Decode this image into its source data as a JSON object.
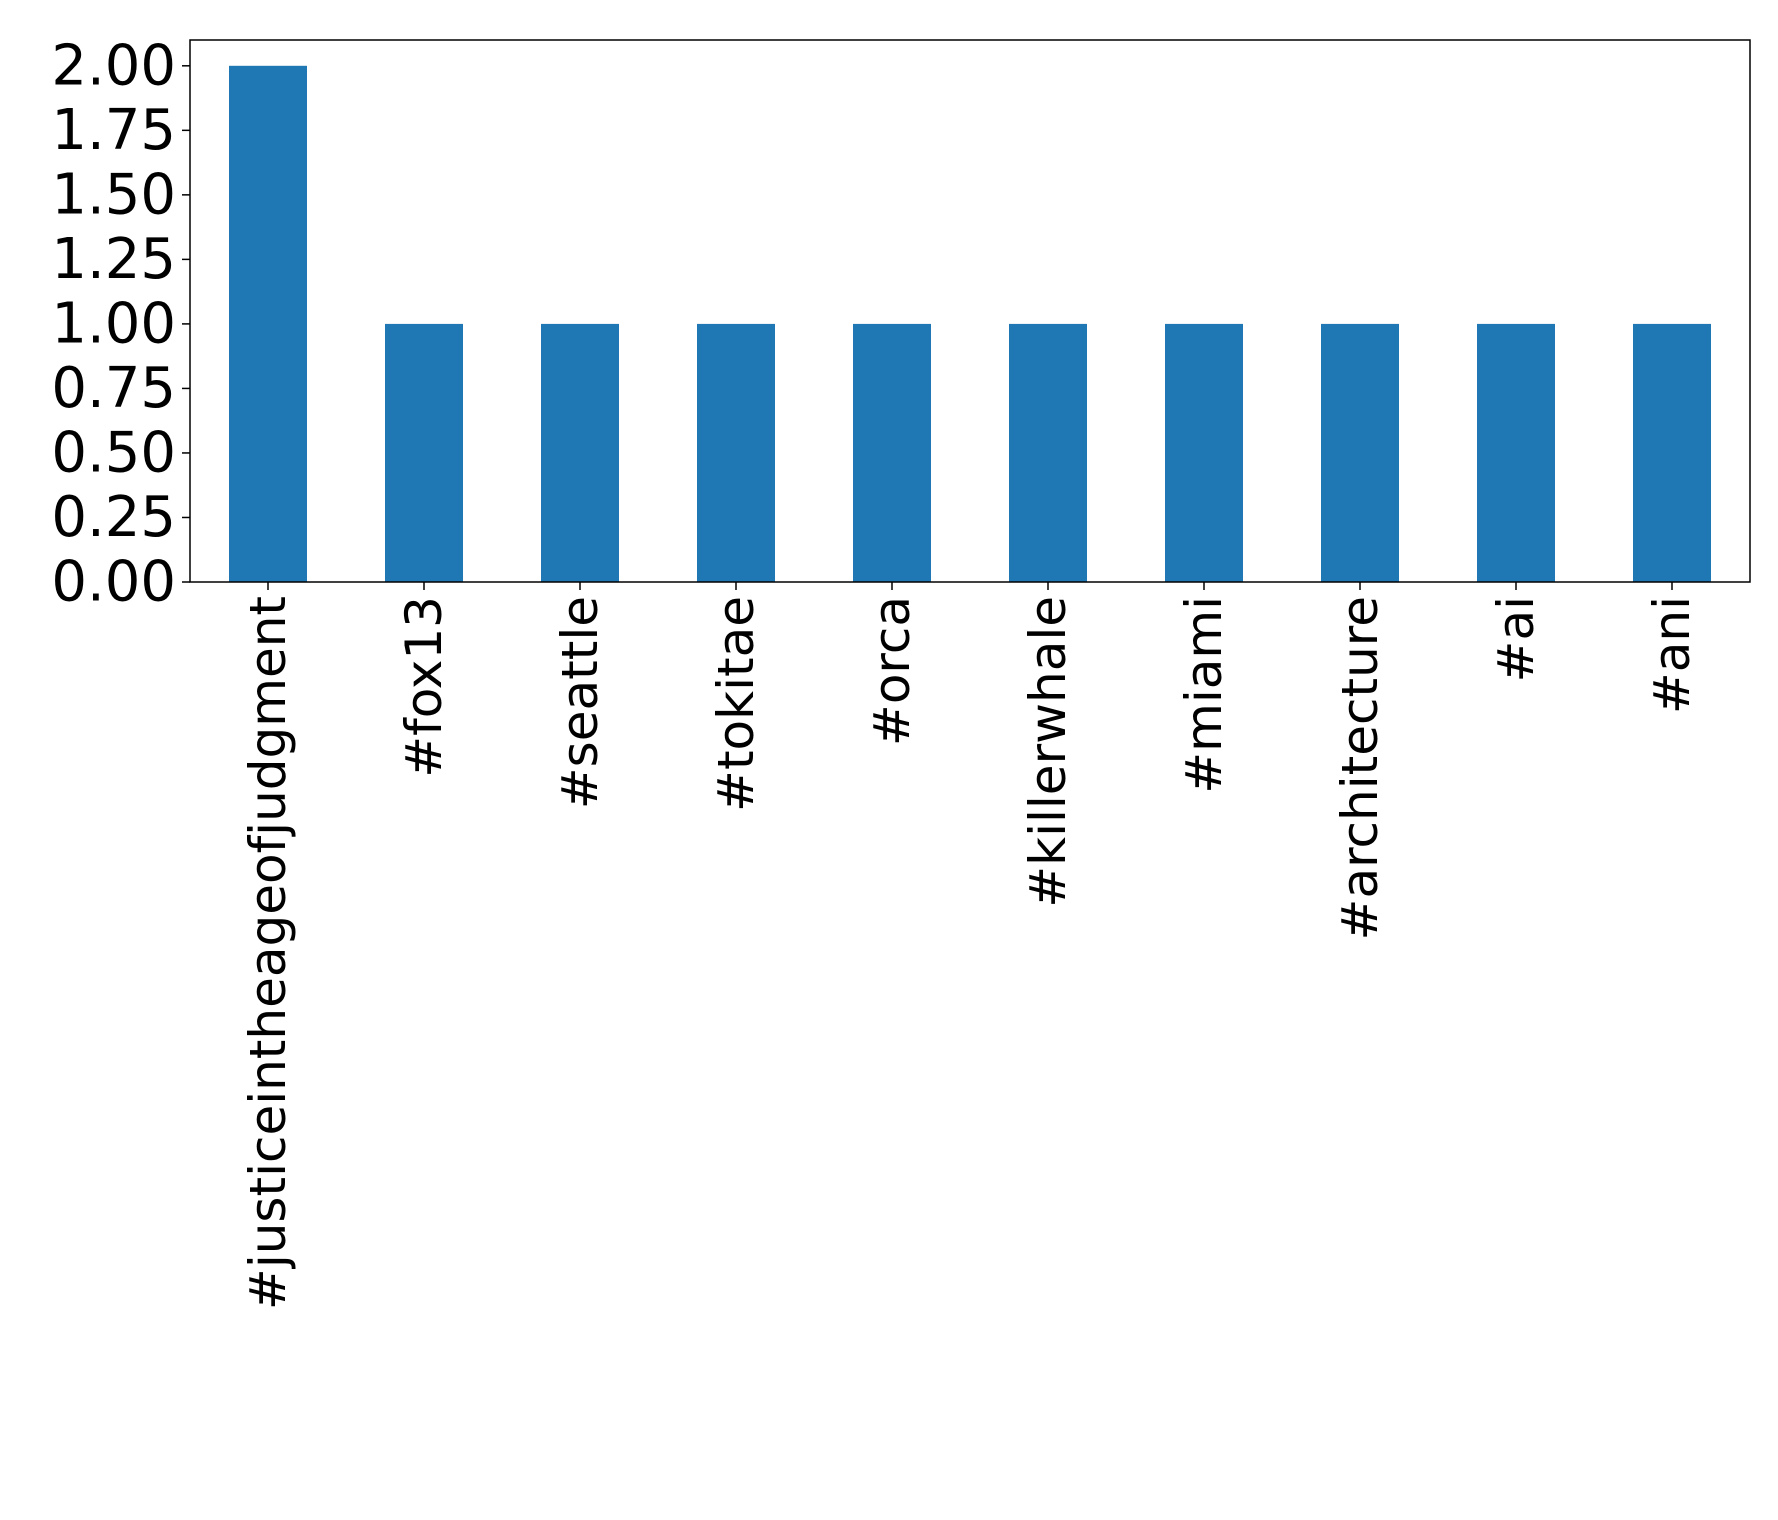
{
  "chart_data": {
    "type": "bar",
    "title": "",
    "xlabel": "",
    "ylabel": "",
    "categories": [
      "#justiceintheageofjudgment",
      "#fox13",
      "#seattle",
      "#tokitae",
      "#orca",
      "#killerwhale",
      "#miami",
      "#architecture",
      "#ai",
      "#ani"
    ],
    "values": [
      2,
      1,
      1,
      1,
      1,
      1,
      1,
      1,
      1,
      1
    ],
    "ylim": [
      0,
      2.1
    ],
    "yticks": [
      "0.00",
      "0.25",
      "0.50",
      "0.75",
      "1.00",
      "1.25",
      "1.50",
      "1.75",
      "2.00"
    ],
    "grid": false,
    "legend": "none",
    "bar_color": "#1f77b4"
  }
}
